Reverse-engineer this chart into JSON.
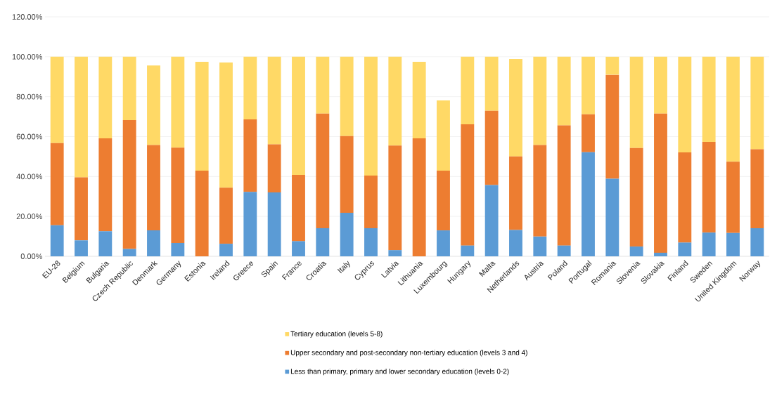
{
  "chart_data": {
    "type": "bar",
    "stacked": true,
    "grid": "y",
    "legend": "bottom",
    "categories": [
      "EU-28",
      "Belgium",
      "Bulgaria",
      "Czech Republic",
      "Denmark",
      "Germany",
      "Estonia",
      "Ireland",
      "Greece",
      "Spain",
      "France",
      "Croatia",
      "Italy",
      "Cyprus",
      "Latvia",
      "Lithuania",
      "Luxembourg",
      "Hungary",
      "Malta",
      "Netherlands",
      "Austria",
      "Poland",
      "Portugal",
      "Romania",
      "Slovenia",
      "Slovakia",
      "Finland",
      "Sweden",
      "United Kingdom",
      "Norway"
    ],
    "ylim": [
      0,
      120
    ],
    "yticks": [
      {
        "value": 0,
        "label": "0.00%"
      },
      {
        "value": 20,
        "label": "20.00%"
      },
      {
        "value": 40,
        "label": "40.00%"
      },
      {
        "value": 60,
        "label": "60.00%"
      },
      {
        "value": 80,
        "label": "80.00%"
      },
      {
        "value": 100,
        "label": "100.00%"
      },
      {
        "value": 120,
        "label": "120.00%"
      }
    ],
    "series": [
      {
        "name": "Less than primary, primary and lower secondary education (levels 0-2)",
        "color": "#5b9bd5",
        "values": [
          15.6,
          8.0,
          12.6,
          3.7,
          13.0,
          6.7,
          0,
          6.3,
          32.3,
          32.0,
          7.6,
          14.1,
          21.8,
          14.1,
          3.1,
          0,
          13.0,
          5.4,
          35.7,
          13.2,
          9.9,
          5.4,
          52.2,
          38.9,
          4.9,
          1.8,
          6.9,
          11.9,
          11.7,
          14.1
        ]
      },
      {
        "name": "Upper secondary and post-secondary non-tertiary education (levels 3 and 4)",
        "color": "#ed7d31",
        "values": [
          41.1,
          31.6,
          46.5,
          64.6,
          42.8,
          47.8,
          42.9,
          28.1,
          36.3,
          24.1,
          33.2,
          57.4,
          38.5,
          26.4,
          52.4,
          59.1,
          29.9,
          60.8,
          37.2,
          36.9,
          45.9,
          60.2,
          19.0,
          52.1,
          49.4,
          69.7,
          45.2,
          45.5,
          35.7,
          39.6
        ]
      },
      {
        "name": "Tertiary education (levels 5-8)",
        "color": "#ffd966",
        "values": [
          43.3,
          60.4,
          40.9,
          31.7,
          39.8,
          45.5,
          54.6,
          62.7,
          31.4,
          43.9,
          59.2,
          28.5,
          39.7,
          59.5,
          44.5,
          38.4,
          35.2,
          33.8,
          27.1,
          48.8,
          44.2,
          34.4,
          28.8,
          9.0,
          45.7,
          28.5,
          47.9,
          42.6,
          52.6,
          46.3
        ]
      }
    ]
  }
}
